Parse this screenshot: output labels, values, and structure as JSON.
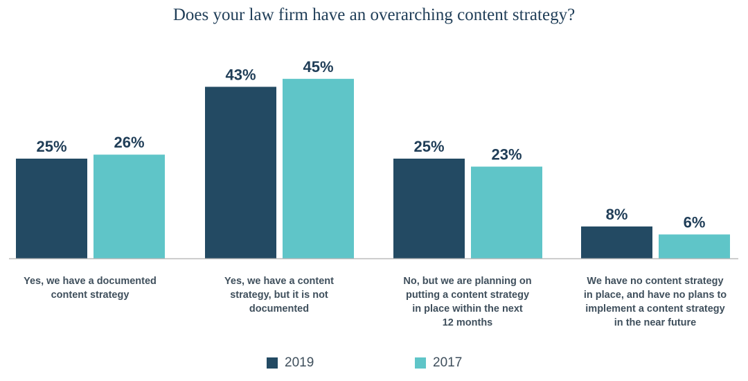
{
  "chart_data": {
    "type": "bar",
    "title": "Does your law firm have an overarching content strategy?",
    "categories": [
      "Yes, we have a documented\ncontent strategy",
      "Yes, we have a content\nstrategy, but it is not\ndocumented",
      "No, but we are planning on\nputting a content strategy\nin place within the next\n12 months",
      "We have no content strategy\nin place, and have no plans to\nimplement a content strategy\nin the near future"
    ],
    "series": [
      {
        "name": "2019",
        "color": "#234a63",
        "values": [
          25,
          43,
          25,
          8
        ],
        "labels": [
          "25%",
          "43%",
          "25%",
          "8%"
        ]
      },
      {
        "name": "2017",
        "color": "#5fc5c8",
        "values": [
          26,
          45,
          23,
          6
        ],
        "labels": [
          "26%",
          "45%",
          "23%",
          "6%"
        ]
      }
    ],
    "unit": "%",
    "ylim": [
      0,
      50
    ],
    "grid": false,
    "legend_position": "bottom"
  }
}
